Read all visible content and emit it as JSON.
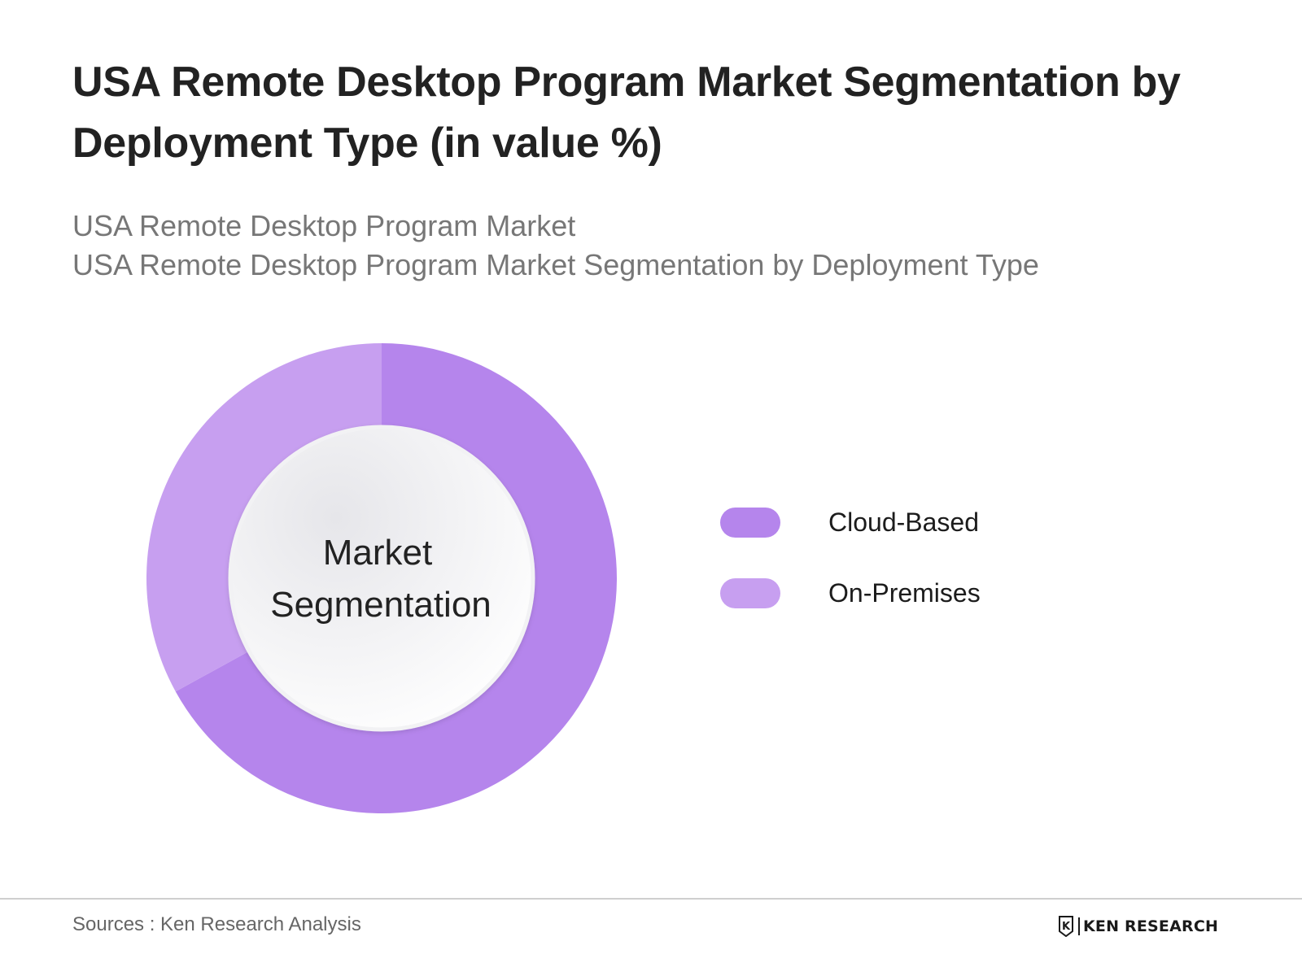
{
  "chart_data": {
    "type": "pie",
    "title": "USA Remote Desktop Program Market Segmentation by Deployment Type (in value %)",
    "subtitle_lines": [
      "USA Remote Desktop Program Market",
      "USA Remote Desktop Program Market Segmentation by Deployment Type"
    ],
    "center_label_lines": [
      "Market",
      "Segmentation"
    ],
    "categories": [
      "Cloud-Based",
      "On-Premises"
    ],
    "values": [
      67,
      33
    ],
    "colors": [
      "#b585ec",
      "#c79ff0"
    ],
    "unit": "%",
    "legend_position": "right",
    "donut": true
  },
  "footer": {
    "sources": "Sources : Ken Research Analysis",
    "logo_text": "KEN RESEARCH",
    "logo_mark": "K"
  }
}
